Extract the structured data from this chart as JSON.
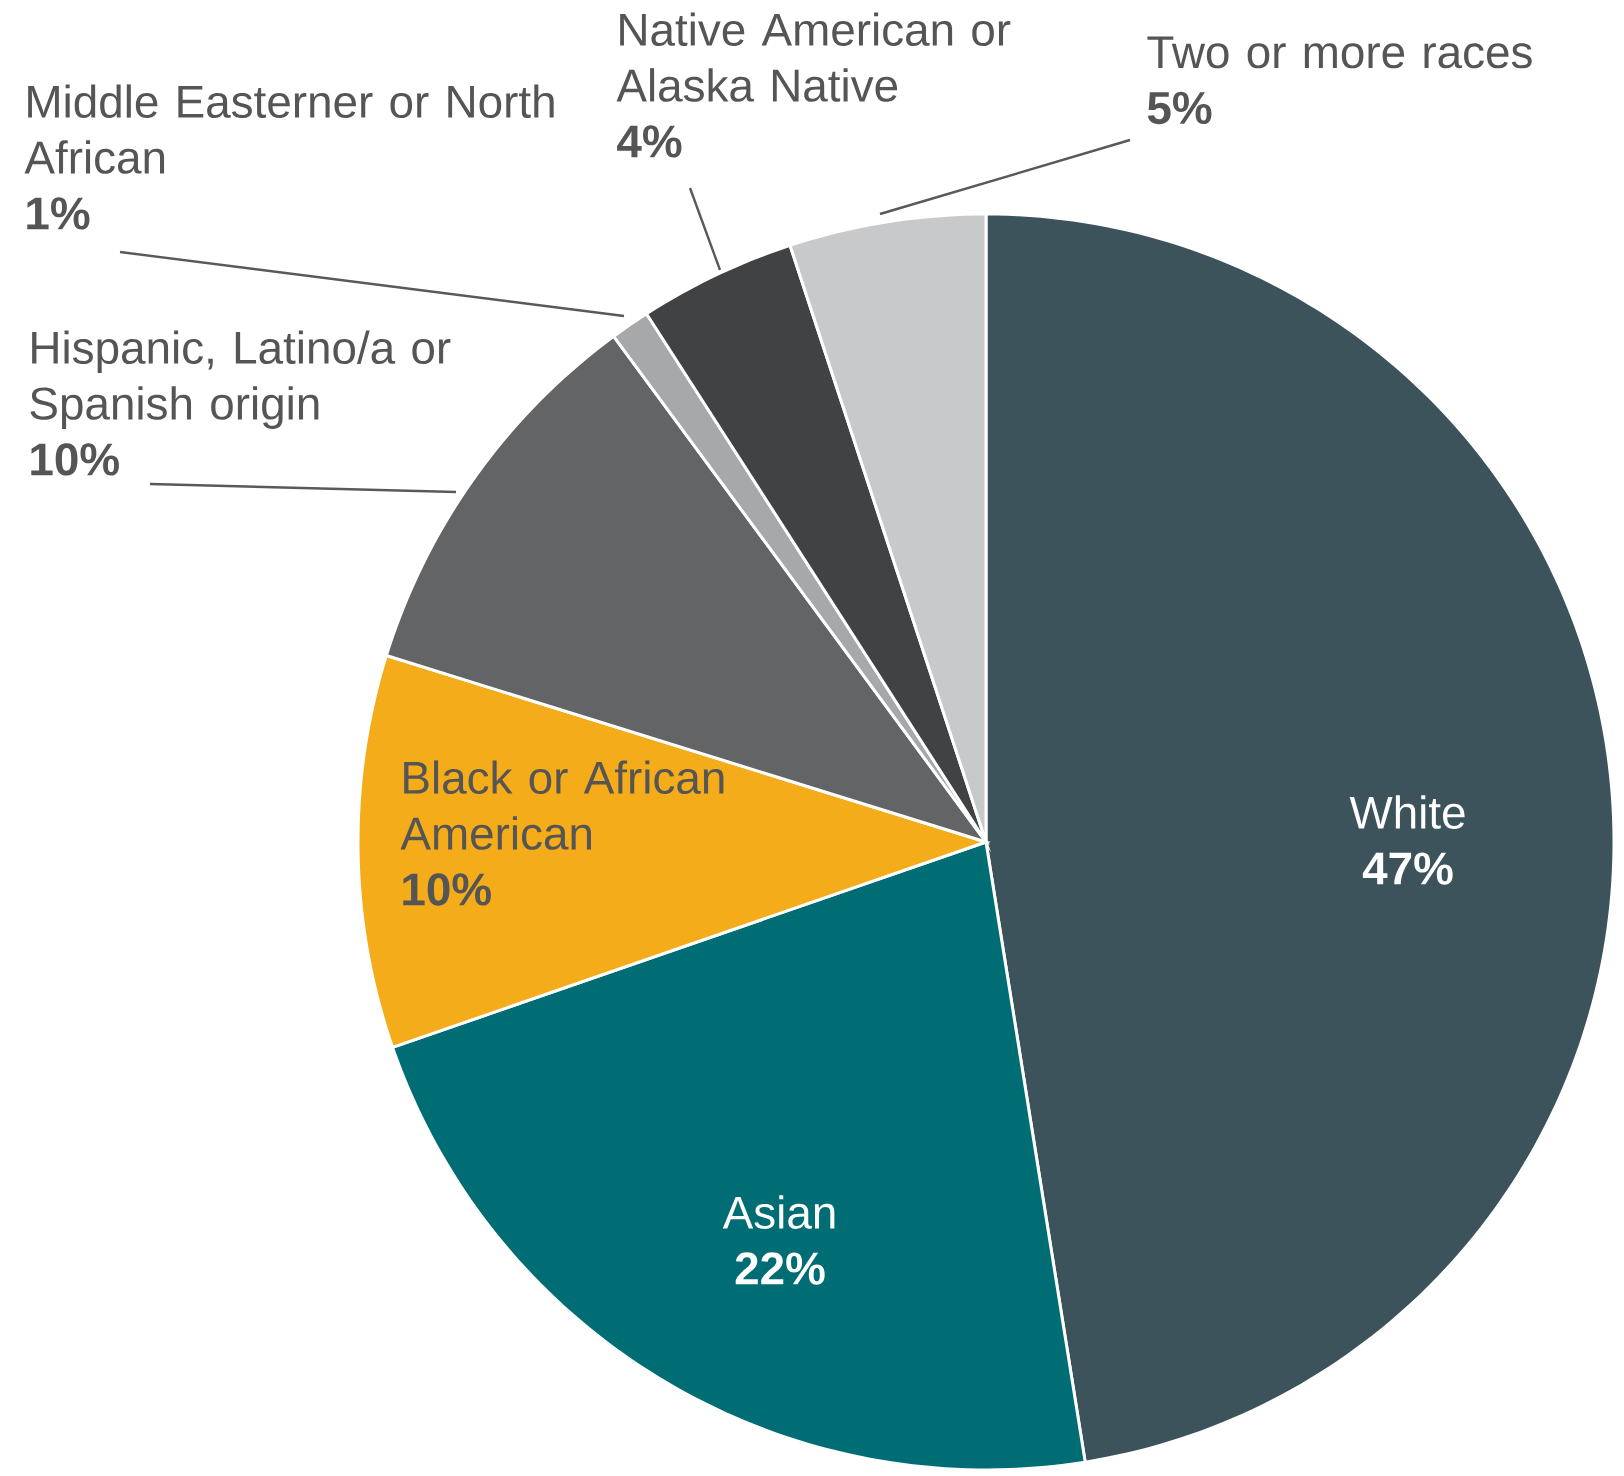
{
  "chart_data": {
    "type": "pie",
    "categories": [
      "White",
      "Asian",
      "Black or African American",
      "Hispanic, Latino/a or Spanish origin",
      "Middle Easterner or North African",
      "Native American or Alaska Native",
      "Two or more races"
    ],
    "values": [
      47,
      22,
      10,
      10,
      1,
      4,
      5
    ],
    "value_labels": [
      "47%",
      "22%",
      "10%",
      "10%",
      "1%",
      "4%",
      "5%"
    ],
    "colors": [
      "#3d535b",
      "#006d75",
      "#f5ac1a",
      "#636466",
      "#a7a8aa",
      "#414244",
      "#c8c9cb"
    ]
  }
}
